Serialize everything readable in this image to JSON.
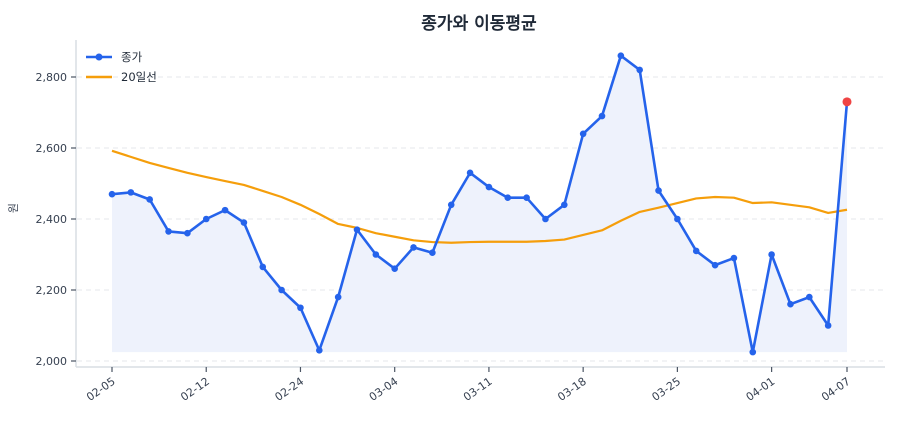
{
  "chart_data": {
    "type": "line",
    "title": "종가와 이동평균",
    "xlabel": "",
    "ylabel": "원",
    "ylim": [
      1985,
      2905
    ],
    "yticks": [
      2000,
      2200,
      2400,
      2600,
      2800
    ],
    "ytick_labels": [
      "2,000",
      "2,200",
      "2,400",
      "2,600",
      "2,800"
    ],
    "grid": {
      "y": true,
      "x": false,
      "style": "dashed"
    },
    "legend_position": "upper-left",
    "xtick_indices": [
      0,
      5,
      10,
      15,
      20,
      25,
      30,
      35,
      39
    ],
    "xtick_labels": [
      "02-05",
      "02-12",
      "02-24",
      "03-04",
      "03-11",
      "03-18",
      "03-25",
      "04-01",
      "04-07"
    ],
    "series": [
      {
        "name": "종가",
        "color": "#2563eb",
        "marker": "circle",
        "fill": "#eef2fc",
        "values": [
          2470,
          2475,
          2455,
          2365,
          2360,
          2400,
          2425,
          2390,
          2265,
          2200,
          2150,
          2030,
          2180,
          2370,
          2300,
          2260,
          2320,
          2305,
          2440,
          2530,
          2490,
          2460,
          2460,
          2400,
          2440,
          2640,
          2690,
          2860,
          2820,
          2480,
          2400,
          2310,
          2270,
          2290,
          2025,
          2300,
          2160,
          2180,
          2100,
          2730
        ]
      },
      {
        "name": "20일선",
        "color": "#f59e0b",
        "marker": "none",
        "values": [
          2592,
          2575,
          2558,
          2544,
          2530,
          2518,
          2507,
          2496,
          2479,
          2462,
          2440,
          2414,
          2386,
          2375,
          2360,
          2350,
          2340,
          2335,
          2333,
          2335,
          2336,
          2336,
          2336,
          2338,
          2342,
          2355,
          2368,
          2395,
          2420,
          2432,
          2445,
          2458,
          2462,
          2460,
          2445,
          2447,
          2440,
          2433,
          2417,
          2426
        ]
      }
    ],
    "annotations": [
      {
        "type": "highlight-point",
        "index": 39,
        "value": 2730,
        "color": "#ef4444"
      }
    ]
  },
  "chart": {
    "title": "종가와 이동평균",
    "ylabel": "원",
    "legend": [
      {
        "label": "종가"
      },
      {
        "label": "20일선"
      }
    ]
  }
}
